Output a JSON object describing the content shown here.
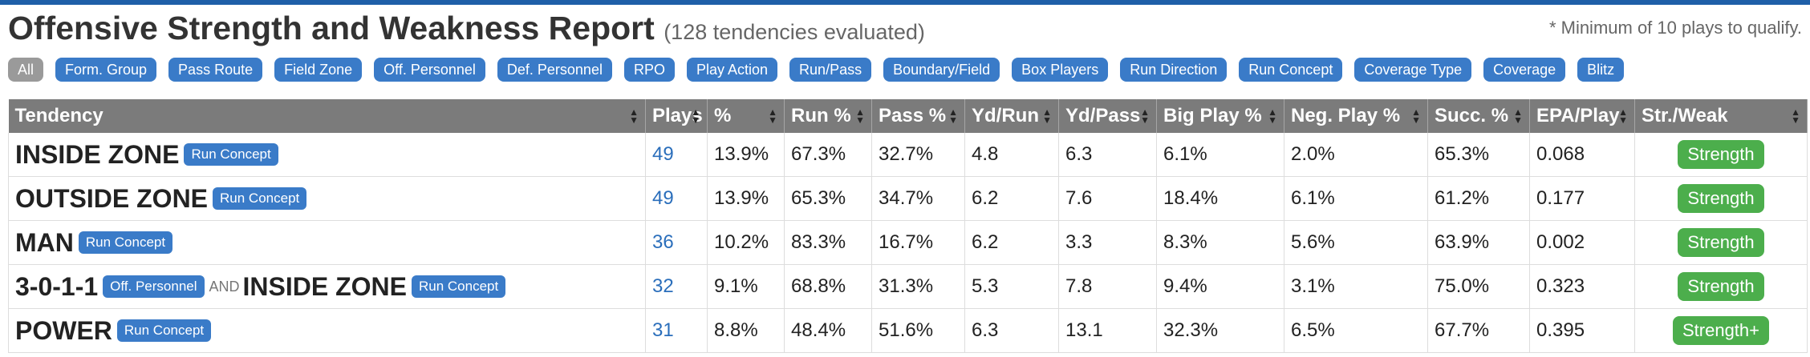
{
  "header": {
    "title": "Offensive Strength and Weakness Report",
    "subtitle": "(128 tendencies evaluated)",
    "note": "* Minimum of 10 plays to qualify."
  },
  "filters": [
    {
      "label": "All",
      "active": true
    },
    {
      "label": "Form. Group"
    },
    {
      "label": "Pass Route"
    },
    {
      "label": "Field Zone"
    },
    {
      "label": "Off. Personnel"
    },
    {
      "label": "Def. Personnel"
    },
    {
      "label": "RPO"
    },
    {
      "label": "Play Action"
    },
    {
      "label": "Run/Pass"
    },
    {
      "label": "Boundary/Field"
    },
    {
      "label": "Box Players"
    },
    {
      "label": "Run Direction"
    },
    {
      "label": "Run Concept"
    },
    {
      "label": "Coverage Type"
    },
    {
      "label": "Coverage"
    },
    {
      "label": "Blitz"
    }
  ],
  "table": {
    "columns": [
      "Tendency",
      "Plays",
      "%",
      "Run %",
      "Pass %",
      "Yd/Run",
      "Yd/Pass",
      "Big Play %",
      "Neg. Play %",
      "Succ. %",
      "EPA/Play",
      "Str./Weak"
    ],
    "rows": [
      {
        "tendency": {
          "name": "INSIDE ZONE",
          "tag": "Run Concept"
        },
        "plays": "49",
        "pct": "13.9%",
        "run": "67.3%",
        "pass": "32.7%",
        "ydrun": "4.8",
        "ydpass": "6.3",
        "big": "6.1%",
        "neg": "2.0%",
        "succ": "65.3%",
        "epa": "0.068",
        "sw": "Strength"
      },
      {
        "tendency": {
          "name": "OUTSIDE ZONE",
          "tag": "Run Concept"
        },
        "plays": "49",
        "pct": "13.9%",
        "run": "65.3%",
        "pass": "34.7%",
        "ydrun": "6.2",
        "ydpass": "7.6",
        "big": "18.4%",
        "neg": "6.1%",
        "succ": "61.2%",
        "epa": "0.177",
        "sw": "Strength"
      },
      {
        "tendency": {
          "name": "MAN",
          "tag": "Run Concept"
        },
        "plays": "36",
        "pct": "10.2%",
        "run": "83.3%",
        "pass": "16.7%",
        "ydrun": "6.2",
        "ydpass": "3.3",
        "big": "8.3%",
        "neg": "5.6%",
        "succ": "63.9%",
        "epa": "0.002",
        "sw": "Strength"
      },
      {
        "tendency": {
          "name": "3-0-1-1",
          "tag": "Off. Personnel",
          "and": "AND",
          "name2": "INSIDE ZONE",
          "tag2": "Run Concept"
        },
        "plays": "32",
        "pct": "9.1%",
        "run": "68.8%",
        "pass": "31.3%",
        "ydrun": "5.3",
        "ydpass": "7.8",
        "big": "9.4%",
        "neg": "3.1%",
        "succ": "75.0%",
        "epa": "0.323",
        "sw": "Strength"
      },
      {
        "tendency": {
          "name": "POWER",
          "tag": "Run Concept"
        },
        "plays": "31",
        "pct": "8.8%",
        "run": "48.4%",
        "pass": "51.6%",
        "ydrun": "6.3",
        "ydpass": "13.1",
        "big": "32.3%",
        "neg": "6.5%",
        "succ": "67.7%",
        "epa": "0.395",
        "sw": "Strength+"
      }
    ]
  }
}
